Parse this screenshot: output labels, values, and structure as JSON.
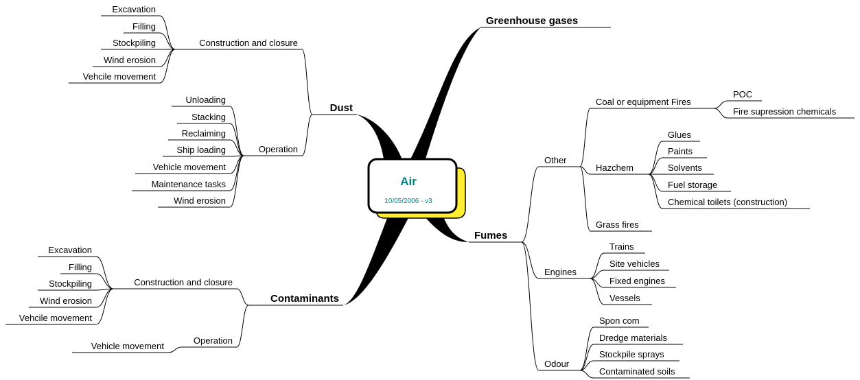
{
  "center": {
    "title": "Air",
    "subtitle": "10/05/2006 - v3"
  },
  "branches": [
    {
      "label": "Dust",
      "children": [
        {
          "label": "Construction and closure",
          "children": [
            {
              "label": "Excavation"
            },
            {
              "label": "Filling"
            },
            {
              "label": "Stockpiling"
            },
            {
              "label": "Wind erosion"
            },
            {
              "label": "Vehcile movement"
            }
          ]
        },
        {
          "label": "Operation",
          "children": [
            {
              "label": "Unloading"
            },
            {
              "label": "Stacking"
            },
            {
              "label": "Reclaiming"
            },
            {
              "label": "Ship loading"
            },
            {
              "label": "Vehicle movement"
            },
            {
              "label": "Maintenance tasks"
            },
            {
              "label": "Wind erosion"
            }
          ]
        }
      ]
    },
    {
      "label": "Greenhouse gases"
    },
    {
      "label": "Fumes",
      "children": [
        {
          "label": "Other",
          "children": [
            {
              "label": "Coal or equipment Fires",
              "children": [
                {
                  "label": "POC"
                },
                {
                  "label": "Fire supression chemicals"
                }
              ]
            },
            {
              "label": "Hazchem",
              "children": [
                {
                  "label": "Glues"
                },
                {
                  "label": "Paints"
                },
                {
                  "label": "Solvents"
                },
                {
                  "label": "Fuel storage"
                },
                {
                  "label": "Chemical toilets (construction)"
                }
              ]
            },
            {
              "label": "Grass fires"
            }
          ]
        },
        {
          "label": "Engines",
          "children": [
            {
              "label": "Trains"
            },
            {
              "label": "Site vehicles"
            },
            {
              "label": "Fixed engines"
            },
            {
              "label": "Vessels"
            }
          ]
        },
        {
          "label": "Odour",
          "children": [
            {
              "label": "Spon com"
            },
            {
              "label": "Dredge materials"
            },
            {
              "label": "Stockpile sprays"
            },
            {
              "label": "Contaminated soils"
            }
          ]
        }
      ]
    },
    {
      "label": "Contaminants",
      "children": [
        {
          "label": "Construction and closure",
          "children": [
            {
              "label": "Excavation"
            },
            {
              "label": "Filling"
            },
            {
              "label": "Stockpiling"
            },
            {
              "label": "Wind erosion"
            },
            {
              "label": "Vehcile movement"
            }
          ]
        },
        {
          "label": "Operation",
          "children": [
            {
              "label": "Vehicle movement"
            }
          ]
        }
      ]
    }
  ]
}
